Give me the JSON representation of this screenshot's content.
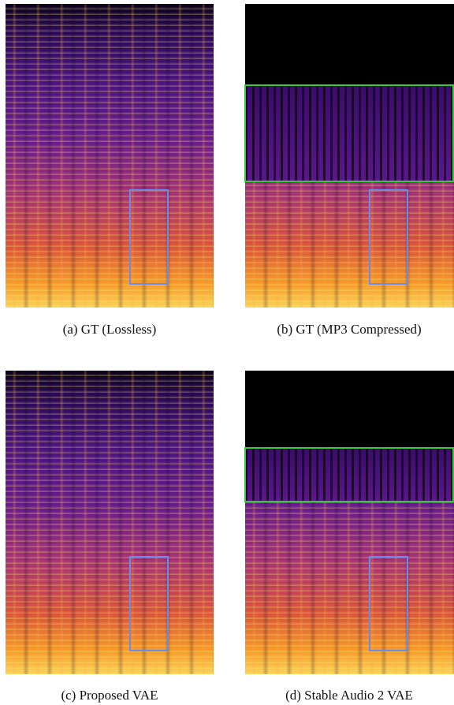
{
  "figure": {
    "panels": [
      {
        "caption": "(a) GT (Lossless)"
      },
      {
        "caption": "(b) GT (MP3 Compressed)"
      },
      {
        "caption": "(c) Proposed VAE"
      },
      {
        "caption": "(d) Stable Audio 2 VAE"
      }
    ]
  }
}
